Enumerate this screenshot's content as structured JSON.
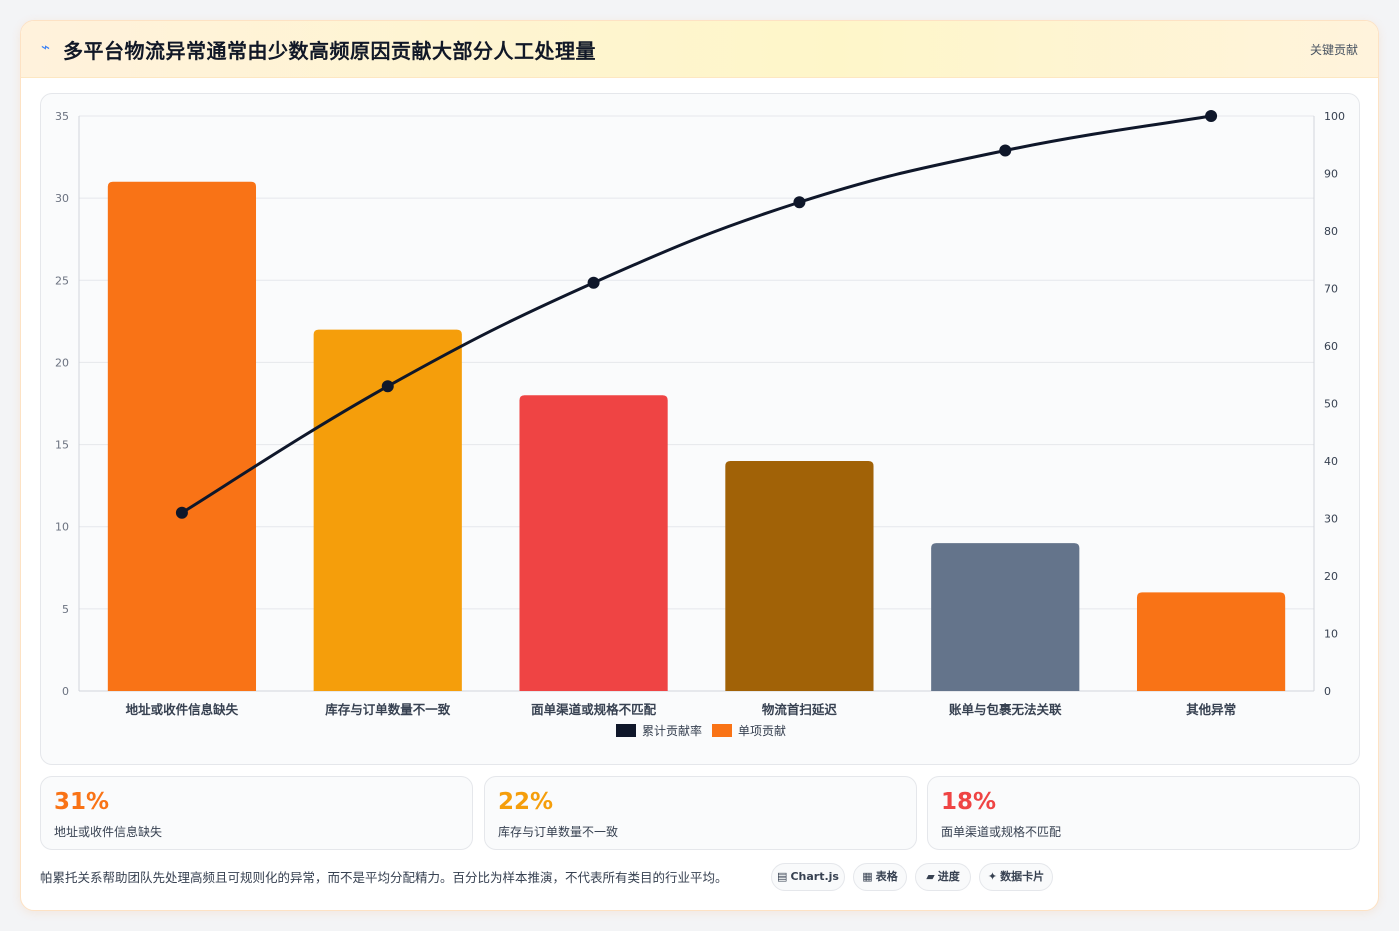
{
  "header": {
    "icon": "bolt-icon",
    "title": "多平台物流异常通常由少数高频原因贡献大部分人工处理量",
    "tag": "关键贡献"
  },
  "chart_data": {
    "type": "bar",
    "categories": [
      "地址或收件信息缺失",
      "库存与订单数量不一致",
      "面单渠道或规格不匹配",
      "物流首扫延迟",
      "账单与包裹无法关联",
      "其他异常"
    ],
    "series": [
      {
        "name": "单项贡献",
        "type": "bar",
        "axis": "left",
        "values": [
          31,
          22,
          18,
          14,
          9,
          6
        ],
        "colors": [
          "#f97316",
          "#f59e0b",
          "#ef4444",
          "#a16207",
          "#64748b",
          "#f97316"
        ]
      },
      {
        "name": "累计贡献率",
        "type": "line",
        "axis": "right",
        "values": [
          31,
          53,
          71,
          85,
          94,
          100
        ],
        "color": "#0f172a"
      }
    ],
    "y_left": {
      "min": 0,
      "max": 35,
      "ticks": [
        0,
        5,
        10,
        15,
        20,
        25,
        30,
        35
      ]
    },
    "y_right": {
      "min": 0,
      "max": 100,
      "ticks": [
        0,
        10,
        20,
        30,
        40,
        50,
        60,
        70,
        80,
        90,
        100
      ]
    },
    "legend": {
      "position": "bottom",
      "items": [
        {
          "label": "累计贡献率",
          "color": "#0f172a"
        },
        {
          "label": "单项贡献",
          "color": "#f97316"
        }
      ]
    },
    "grid": true
  },
  "stats": [
    {
      "value": "31%",
      "label": "地址或收件信息缺失",
      "color": "#f97316"
    },
    {
      "value": "22%",
      "label": "库存与订单数量不一致",
      "color": "#f59e0b"
    },
    {
      "value": "18%",
      "label": "面单渠道或规格不匹配",
      "color": "#ef4444"
    }
  ],
  "footer": {
    "note": "帕累托关系帮助团队先处理高频且可规则化的异常，而不是平均分配精力。百分比为样本推演，不代表所有类目的行业平均。",
    "pills": [
      {
        "icon": "chart-icon",
        "label": "Chart.js"
      },
      {
        "icon": "table-icon",
        "label": "表格"
      },
      {
        "icon": "progress-icon",
        "label": "进度"
      },
      {
        "icon": "card-icon",
        "label": "数据卡片"
      }
    ]
  }
}
